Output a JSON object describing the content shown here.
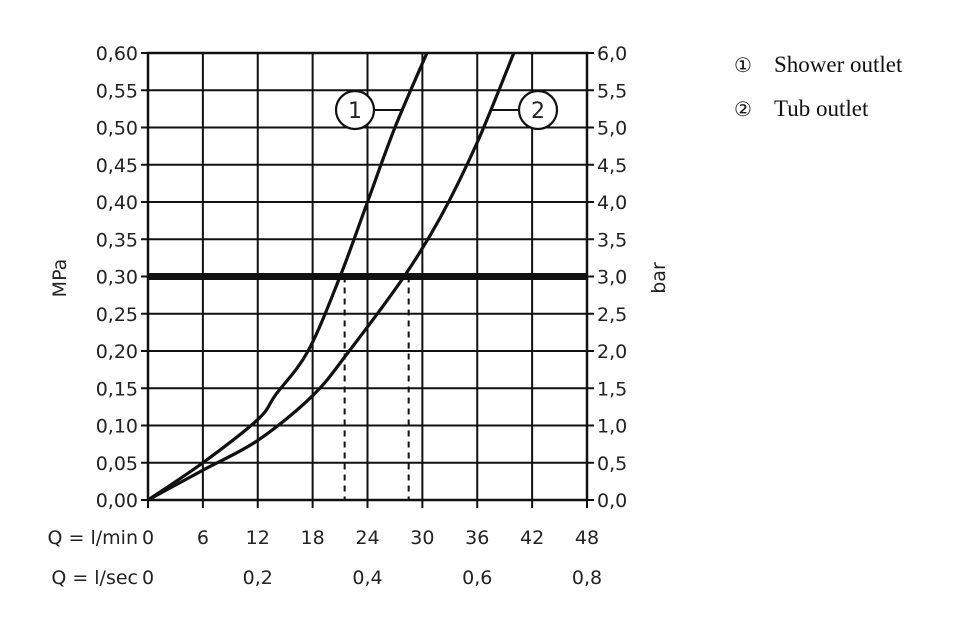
{
  "chart_data": {
    "type": "line",
    "title": "",
    "y_left": {
      "label": "MPa",
      "min": 0,
      "max": 0.6,
      "ticks": [
        "0,00",
        "0,05",
        "0,10",
        "0,15",
        "0,20",
        "0,25",
        "0,30",
        "0,35",
        "0,40",
        "0,45",
        "0,50",
        "0,55",
        "0,60"
      ]
    },
    "y_right": {
      "label": "bar",
      "ticks": [
        "0,0",
        "0,5",
        "1,0",
        "1,5",
        "2,0",
        "2,5",
        "3,0",
        "3,5",
        "4,0",
        "4,5",
        "5,0",
        "5,5",
        "6,0"
      ]
    },
    "x_lmin": {
      "label": "Q = l/min",
      "min": 0,
      "max": 48,
      "ticks": [
        "0",
        "6",
        "12",
        "18",
        "24",
        "30",
        "36",
        "42",
        "48"
      ]
    },
    "x_lsec": {
      "label": "Q = l/sec",
      "ticks": [
        {
          "value": 0,
          "text": "0"
        },
        {
          "value": 12,
          "text": "0,2"
        },
        {
          "value": 24,
          "text": "0,4"
        },
        {
          "value": 36,
          "text": "0,6"
        },
        {
          "value": 48,
          "text": "0,8"
        }
      ]
    },
    "reference_line": {
      "y": 0.3
    },
    "grid": true,
    "series": [
      {
        "name": "Shower outlet",
        "marker": "①",
        "callout": "1",
        "x": [
          0,
          6,
          12,
          14,
          17.5,
          21,
          24,
          27,
          30.5
        ],
        "y": [
          0,
          0.05,
          0.108,
          0.142,
          0.2,
          0.3,
          0.4,
          0.5,
          0.6
        ]
      },
      {
        "name": "Tub outlet",
        "marker": "②",
        "callout": "2",
        "x": [
          0,
          6,
          12,
          18,
          22,
          28,
          32,
          36,
          40
        ],
        "y": [
          0,
          0.04,
          0.08,
          0.14,
          0.2,
          0.3,
          0.38,
          0.48,
          0.6
        ]
      }
    ],
    "dashed_markers": [
      21.5,
      28.5
    ]
  }
}
